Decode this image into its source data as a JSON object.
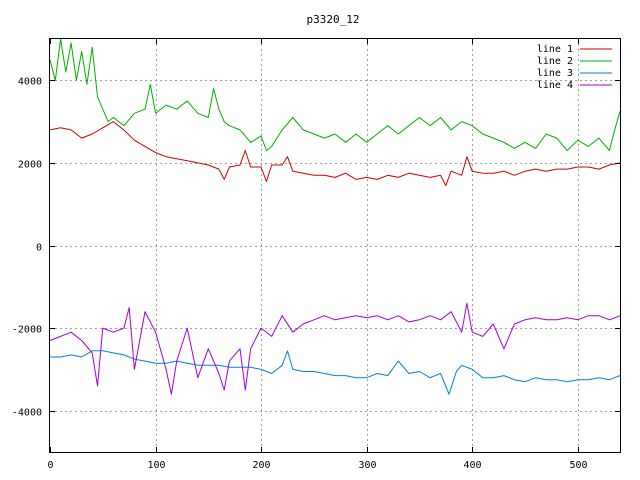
{
  "chart_data": {
    "type": "line",
    "title": "p3320_12",
    "xlabel": "",
    "ylabel": "",
    "xlim": [
      0,
      540
    ],
    "ylim": [
      -5000,
      5000
    ],
    "xticks": [
      0,
      100,
      200,
      300,
      400,
      500
    ],
    "yticks": [
      -4000,
      -2000,
      0,
      2000,
      4000
    ],
    "grid": true,
    "legend_position": "top-right",
    "series": [
      {
        "name": "line 1",
        "color": "#cc0000",
        "x": [
          0,
          10,
          20,
          30,
          40,
          50,
          60,
          70,
          80,
          90,
          100,
          110,
          120,
          130,
          140,
          150,
          160,
          165,
          170,
          180,
          185,
          190,
          200,
          205,
          210,
          220,
          225,
          230,
          240,
          250,
          260,
          270,
          280,
          290,
          300,
          310,
          320,
          330,
          340,
          350,
          360,
          370,
          375,
          380,
          390,
          395,
          400,
          410,
          420,
          430,
          440,
          450,
          460,
          470,
          480,
          490,
          500,
          510,
          520,
          530,
          540
        ],
        "y": [
          2800,
          2850,
          2800,
          2600,
          2700,
          2850,
          3000,
          2800,
          2550,
          2400,
          2250,
          2150,
          2100,
          2050,
          2000,
          1950,
          1850,
          1600,
          1900,
          1950,
          2300,
          1900,
          1900,
          1550,
          1950,
          1950,
          2150,
          1800,
          1750,
          1700,
          1700,
          1650,
          1750,
          1600,
          1650,
          1600,
          1700,
          1650,
          1750,
          1700,
          1650,
          1700,
          1450,
          1800,
          1700,
          2150,
          1800,
          1750,
          1750,
          1800,
          1700,
          1800,
          1850,
          1800,
          1850,
          1850,
          1900,
          1900,
          1850,
          1950,
          2000
        ]
      },
      {
        "name": "line 2",
        "color": "#00b000",
        "x": [
          0,
          5,
          10,
          15,
          20,
          25,
          30,
          35,
          40,
          45,
          50,
          55,
          60,
          70,
          80,
          90,
          95,
          100,
          110,
          120,
          130,
          140,
          150,
          155,
          160,
          165,
          170,
          180,
          190,
          200,
          205,
          210,
          220,
          230,
          240,
          250,
          260,
          270,
          280,
          290,
          300,
          310,
          320,
          330,
          340,
          350,
          360,
          370,
          380,
          390,
          400,
          410,
          420,
          430,
          440,
          450,
          460,
          470,
          480,
          490,
          500,
          510,
          520,
          530,
          535,
          540
        ],
        "y": [
          4500,
          4000,
          5000,
          4200,
          4900,
          4000,
          4700,
          3900,
          4800,
          3600,
          3300,
          3000,
          3100,
          2900,
          3200,
          3300,
          3900,
          3200,
          3400,
          3300,
          3500,
          3200,
          3100,
          3800,
          3300,
          3000,
          2900,
          2800,
          2500,
          2650,
          2300,
          2400,
          2800,
          3100,
          2800,
          2700,
          2600,
          2700,
          2500,
          2700,
          2500,
          2700,
          2900,
          2700,
          2900,
          3100,
          2900,
          3100,
          2800,
          3000,
          2900,
          2700,
          2600,
          2500,
          2350,
          2500,
          2350,
          2700,
          2600,
          2300,
          2550,
          2400,
          2600,
          2300,
          2800,
          3250
        ]
      },
      {
        "name": "line 3",
        "color": "#0080e0",
        "x": [
          0,
          10,
          20,
          30,
          40,
          50,
          60,
          70,
          80,
          90,
          100,
          110,
          120,
          130,
          140,
          150,
          160,
          170,
          180,
          190,
          200,
          210,
          220,
          225,
          230,
          240,
          250,
          260,
          270,
          280,
          290,
          300,
          310,
          320,
          330,
          340,
          350,
          360,
          370,
          378,
          385,
          390,
          400,
          410,
          420,
          430,
          440,
          450,
          460,
          470,
          480,
          490,
          500,
          510,
          520,
          530,
          540
        ],
        "y": [
          -2700,
          -2700,
          -2650,
          -2700,
          -2550,
          -2550,
          -2600,
          -2650,
          -2750,
          -2800,
          -2850,
          -2850,
          -2800,
          -2850,
          -2900,
          -2900,
          -2900,
          -2950,
          -2950,
          -2950,
          -3000,
          -3100,
          -2900,
          -2550,
          -3000,
          -3050,
          -3050,
          -3100,
          -3150,
          -3150,
          -3200,
          -3200,
          -3100,
          -3150,
          -2800,
          -3100,
          -3050,
          -3200,
          -3100,
          -3600,
          -3050,
          -2900,
          -3000,
          -3200,
          -3200,
          -3150,
          -3250,
          -3300,
          -3200,
          -3250,
          -3250,
          -3300,
          -3250,
          -3250,
          -3200,
          -3250,
          -3150
        ]
      },
      {
        "name": "line 4",
        "color": "#a000e0",
        "x": [
          0,
          10,
          20,
          30,
          40,
          45,
          50,
          60,
          70,
          75,
          80,
          90,
          100,
          110,
          115,
          120,
          130,
          140,
          150,
          160,
          165,
          170,
          180,
          185,
          190,
          200,
          210,
          220,
          230,
          240,
          250,
          260,
          270,
          280,
          290,
          300,
          310,
          320,
          330,
          340,
          350,
          360,
          370,
          380,
          390,
          395,
          400,
          410,
          420,
          430,
          440,
          450,
          460,
          470,
          480,
          490,
          500,
          510,
          520,
          530,
          540
        ],
        "y": [
          -2300,
          -2200,
          -2100,
          -2300,
          -2600,
          -3400,
          -2000,
          -2100,
          -2000,
          -1500,
          -3000,
          -1600,
          -2100,
          -3000,
          -3600,
          -2800,
          -2000,
          -3200,
          -2500,
          -3100,
          -3500,
          -2800,
          -2500,
          -3500,
          -2500,
          -2000,
          -2200,
          -1700,
          -2100,
          -1900,
          -1800,
          -1700,
          -1800,
          -1750,
          -1700,
          -1750,
          -1700,
          -1800,
          -1700,
          -1850,
          -1800,
          -1700,
          -1800,
          -1600,
          -2100,
          -1400,
          -2100,
          -2200,
          -1900,
          -2500,
          -1900,
          -1800,
          -1750,
          -1800,
          -1800,
          -1750,
          -1800,
          -1700,
          -1700,
          -1800,
          -1700
        ]
      }
    ]
  }
}
